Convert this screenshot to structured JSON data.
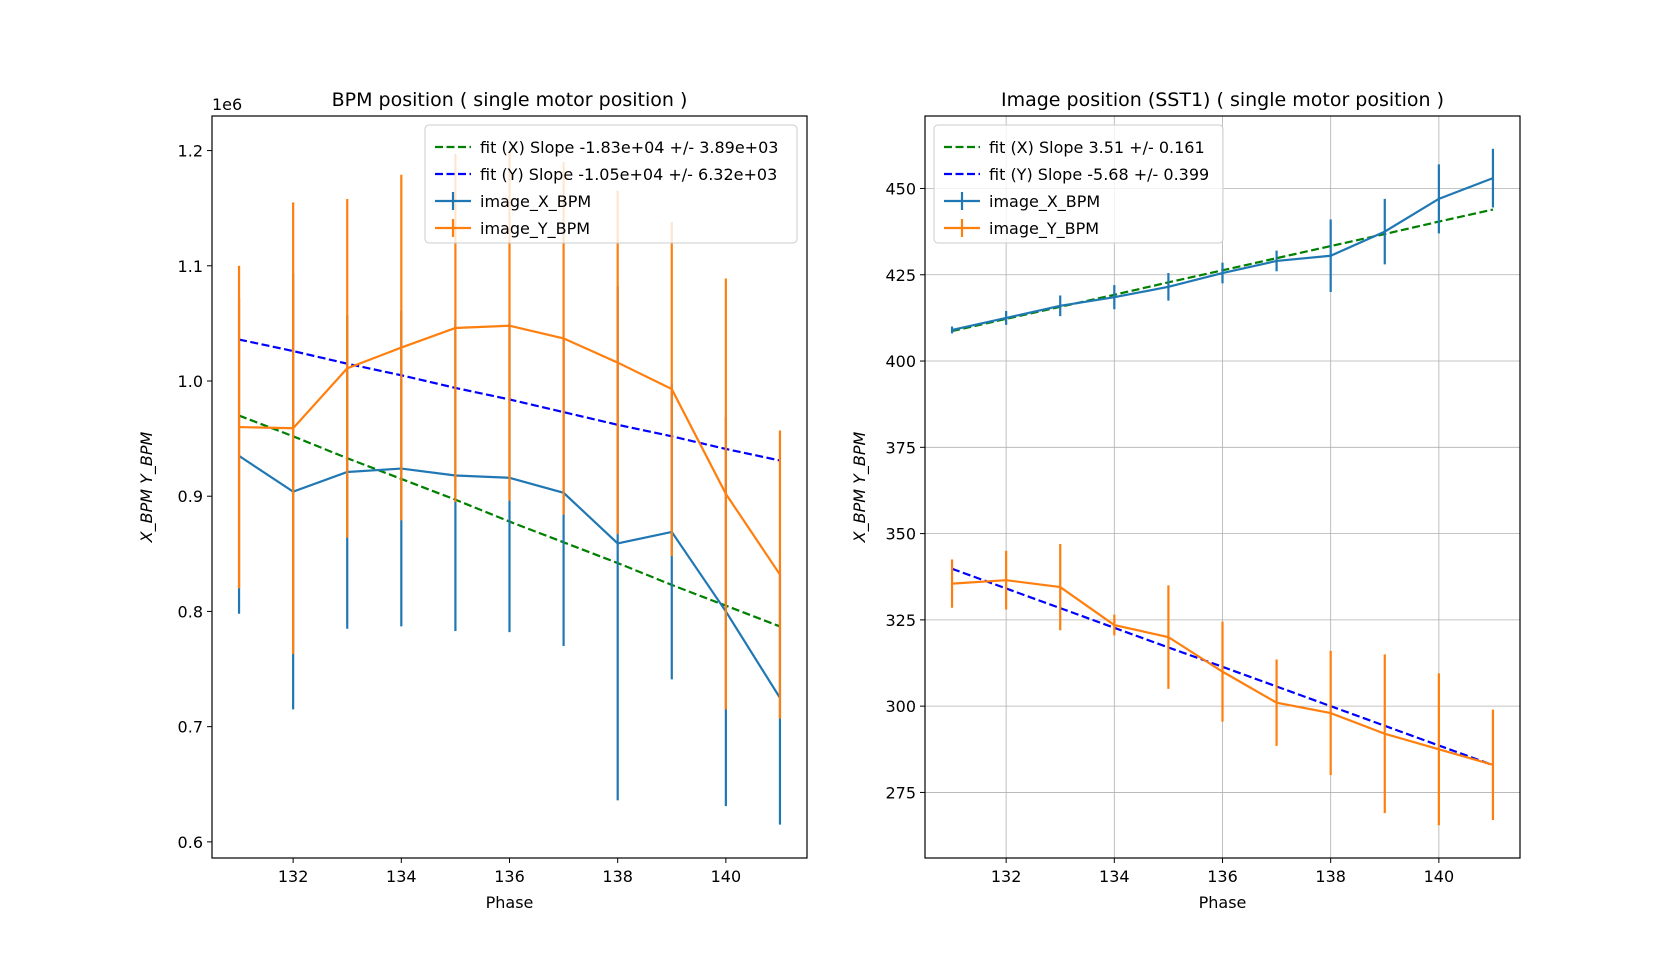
{
  "chart_data": [
    {
      "type": "line",
      "title": "BPM position ( single motor  position )",
      "xlabel": "Phase",
      "ylabel": "X_BPM Y_BPM",
      "offset_label": "1e6",
      "xlim": [
        130.5,
        141.5
      ],
      "ylim": [
        0.586,
        1.23
      ],
      "xticks": [
        132,
        134,
        136,
        138,
        140
      ],
      "yticks": [
        0.6,
        0.7,
        0.8,
        0.9,
        1.0,
        1.1,
        1.2
      ],
      "ytick_labels": [
        "0.6",
        "0.7",
        "0.8",
        "0.9",
        "1.0",
        "1.1",
        "1.2"
      ],
      "grid": false,
      "legend_position": "top-right",
      "x": [
        131,
        132,
        133,
        134,
        135,
        136,
        137,
        138,
        139,
        140,
        141
      ],
      "series": [
        {
          "name": "fit (X) Slope -1.83e+04 +/- 3.89e+03",
          "style": "dashed",
          "color": "#008000",
          "values": [
            0.97,
            0.952,
            0.933,
            0.915,
            0.897,
            0.878,
            0.86,
            0.842,
            0.823,
            0.805,
            0.787
          ]
        },
        {
          "name": "fit (Y) Slope -1.05e+04 +/- 6.32e+03",
          "style": "dashed",
          "color": "#0000ff",
          "values": [
            1.036,
            1.026,
            1.015,
            1.005,
            0.994,
            0.984,
            0.973,
            0.962,
            0.952,
            0.941,
            0.931
          ]
        },
        {
          "name": "image_X_BPM",
          "style": "errorbar",
          "color": "#1f77b4",
          "values": [
            0.935,
            0.904,
            0.921,
            0.924,
            0.918,
            0.916,
            0.903,
            0.859,
            0.869,
            0.8,
            0.725
          ],
          "errors": [
            0.137,
            0.189,
            0.136,
            0.137,
            0.135,
            0.134,
            0.133,
            0.223,
            0.128,
            0.169,
            0.11
          ]
        },
        {
          "name": "image_Y_BPM",
          "style": "errorbar",
          "color": "#ff7f0e",
          "values": [
            0.96,
            0.959,
            1.011,
            1.029,
            1.046,
            1.048,
            1.037,
            1.016,
            0.993,
            0.902,
            0.832
          ],
          "errors": [
            0.14,
            0.196,
            0.147,
            0.15,
            0.151,
            0.152,
            0.153,
            0.149,
            0.145,
            0.187,
            0.125
          ]
        }
      ]
    },
    {
      "type": "line",
      "title": "Image position (SST1) ( single motor  position )",
      "xlabel": "Phase",
      "ylabel": "X_BPM Y_BPM",
      "xlim": [
        130.5,
        141.5
      ],
      "ylim": [
        256,
        471
      ],
      "xticks": [
        132,
        134,
        136,
        138,
        140
      ],
      "yticks": [
        275,
        300,
        325,
        350,
        375,
        400,
        425,
        450
      ],
      "ytick_labels": [
        "275",
        "300",
        "325",
        "350",
        "375",
        "400",
        "425",
        "450"
      ],
      "grid": true,
      "legend_position": "top-left",
      "x": [
        131,
        132,
        133,
        134,
        135,
        136,
        137,
        138,
        139,
        140,
        141
      ],
      "series": [
        {
          "name": "fit (X) Slope 3.51 +/- 0.161",
          "style": "dashed",
          "color": "#008000",
          "values": [
            408.7,
            412.2,
            415.7,
            419.2,
            422.8,
            426.3,
            429.8,
            433.3,
            436.8,
            440.4,
            443.9
          ]
        },
        {
          "name": "fit (Y) Slope -5.68 +/- 0.399",
          "style": "dashed",
          "color": "#0000ff",
          "values": [
            339.8,
            334.1,
            328.4,
            322.7,
            317.0,
            311.4,
            305.7,
            300.0,
            294.3,
            288.6,
            282.9
          ]
        },
        {
          "name": "image_X_BPM",
          "style": "errorbar",
          "color": "#1f77b4",
          "values": [
            409,
            412.5,
            416,
            418.5,
            421.5,
            425.5,
            429,
            430.5,
            437.5,
            447,
            453
          ],
          "errors": [
            1,
            2,
            3,
            3.5,
            4,
            3,
            3,
            10.5,
            9.5,
            10,
            8.5
          ]
        },
        {
          "name": "image_Y_BPM",
          "style": "errorbar",
          "color": "#ff7f0e",
          "values": [
            335.5,
            336.5,
            334.5,
            323.5,
            320,
            310,
            301,
            298,
            292,
            287.5,
            283
          ],
          "errors": [
            7,
            8.5,
            12.5,
            3,
            15,
            14.5,
            12.5,
            18,
            23,
            22,
            16
          ]
        }
      ]
    }
  ]
}
